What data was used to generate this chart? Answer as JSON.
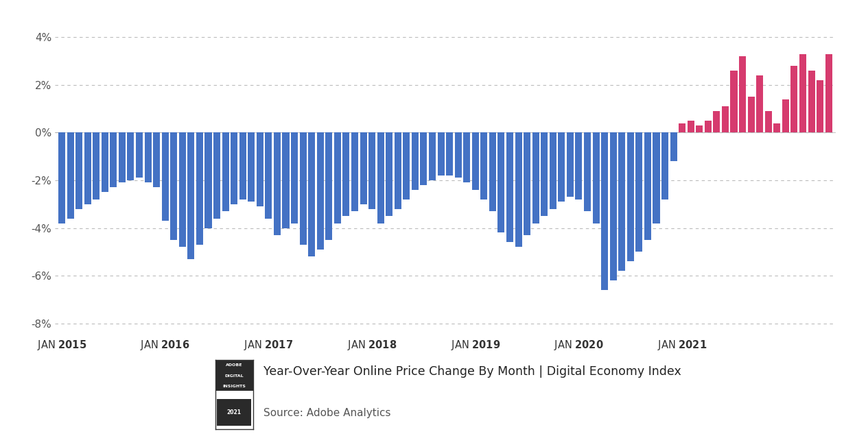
{
  "title": "Year-Over-Year Online Price Change By Month | Digital Economy Index",
  "source": "Source: Adobe Analytics",
  "bar_color_blue": "#4472C4",
  "bar_color_pink": "#D63B6E",
  "bg_color": "#FFFFFF",
  "grid_color": "#BBBBBB",
  "text_color": "#555555",
  "ylim": [
    -8.5,
    5.0
  ],
  "yticks": [
    -8,
    -6,
    -4,
    -2,
    0,
    2,
    4
  ],
  "ytick_labels": [
    "-8%",
    "-6%",
    "-4%",
    "-2%",
    "0%",
    "2%",
    "4%"
  ],
  "xtick_labels": [
    "JAN 2015",
    "JAN 2016",
    "JAN 2017",
    "JAN 2018",
    "JAN 2019",
    "JAN 2020",
    "JAN 2021"
  ],
  "values": [
    -3.8,
    -3.6,
    -3.2,
    -3.0,
    -2.8,
    -2.5,
    -2.3,
    -2.1,
    -2.0,
    -1.9,
    -2.1,
    -2.3,
    -3.7,
    -4.5,
    -4.8,
    -5.3,
    -4.7,
    -4.0,
    -3.6,
    -3.3,
    -3.0,
    -2.8,
    -2.9,
    -3.1,
    -3.6,
    -4.3,
    -4.0,
    -3.8,
    -4.7,
    -5.2,
    -4.9,
    -4.5,
    -3.8,
    -3.5,
    -3.3,
    -3.0,
    -3.2,
    -3.8,
    -3.5,
    -3.2,
    -2.8,
    -2.4,
    -2.2,
    -2.0,
    -1.8,
    -1.8,
    -1.9,
    -2.1,
    -2.4,
    -2.8,
    -3.3,
    -4.2,
    -4.6,
    -4.8,
    -4.3,
    -3.8,
    -3.5,
    -3.2,
    -2.9,
    -2.7,
    -2.8,
    -3.3,
    -3.8,
    -6.6,
    -6.2,
    -5.8,
    -5.4,
    -5.0,
    -4.5,
    -3.8,
    -2.8,
    -1.2,
    0.4,
    0.5,
    0.3,
    0.5,
    0.9,
    1.1,
    2.6,
    3.2,
    1.5,
    2.4,
    0.9,
    0.4,
    1.4,
    2.8,
    3.3,
    2.6,
    2.2,
    3.3
  ]
}
